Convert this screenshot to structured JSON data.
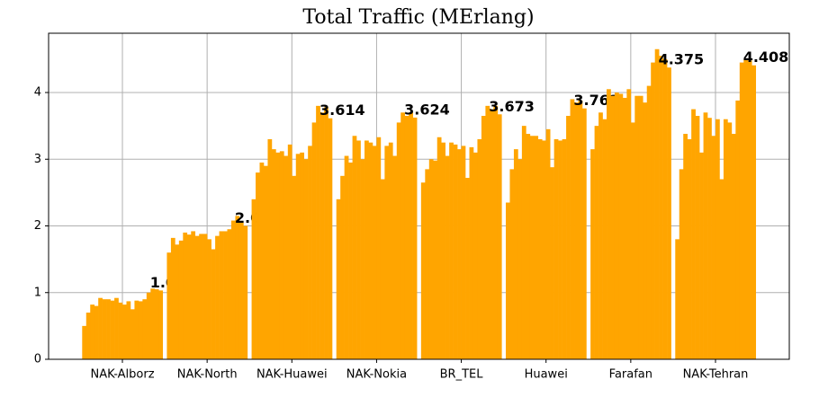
{
  "chart_data": {
    "type": "grouped-time-bar",
    "title": "Total Traffic (MErlang)",
    "categories": [
      "NAK-Alborz",
      "NAK-North",
      "NAK-Huawei",
      "NAK-Nokia",
      "BR_TEL",
      "Huawei",
      "Farafan",
      "NAK-Tehran"
    ],
    "values": [
      [
        0.5,
        0.7,
        0.82,
        0.8,
        0.92,
        0.9,
        0.9,
        0.88,
        0.92,
        0.85,
        0.82,
        0.87,
        0.75,
        0.88,
        0.87,
        0.9,
        1.0,
        1.06,
        1.05,
        1.032
      ],
      [
        1.6,
        1.82,
        1.72,
        1.78,
        1.9,
        1.87,
        1.92,
        1.85,
        1.88,
        1.88,
        1.8,
        1.65,
        1.85,
        1.92,
        1.92,
        1.95,
        2.08,
        2.15,
        2.05,
        2.0
      ],
      [
        2.4,
        2.8,
        2.95,
        2.9,
        3.3,
        3.15,
        3.1,
        3.12,
        3.05,
        3.22,
        2.75,
        3.08,
        3.1,
        3.0,
        3.2,
        3.55,
        3.8,
        3.7,
        3.78,
        3.614
      ],
      [
        2.4,
        2.75,
        3.05,
        2.95,
        3.35,
        3.28,
        3.0,
        3.28,
        3.25,
        3.2,
        3.33,
        2.7,
        3.2,
        3.25,
        3.05,
        3.55,
        3.7,
        3.65,
        3.7,
        3.624
      ],
      [
        2.65,
        2.85,
        3.0,
        2.98,
        3.33,
        3.25,
        3.05,
        3.25,
        3.22,
        3.15,
        3.2,
        2.72,
        3.18,
        3.1,
        3.3,
        3.65,
        3.8,
        3.75,
        3.8,
        3.673
      ],
      [
        2.35,
        2.85,
        3.15,
        3.0,
        3.5,
        3.38,
        3.35,
        3.35,
        3.3,
        3.28,
        3.45,
        2.88,
        3.3,
        3.28,
        3.3,
        3.65,
        3.9,
        3.85,
        3.88,
        3.762
      ],
      [
        3.15,
        3.5,
        3.7,
        3.6,
        4.05,
        3.95,
        4.0,
        3.98,
        3.92,
        4.05,
        3.55,
        3.95,
        3.95,
        3.85,
        4.1,
        4.45,
        4.65,
        4.55,
        4.5,
        4.375
      ],
      [
        1.8,
        2.85,
        3.38,
        3.3,
        3.75,
        3.65,
        3.1,
        3.7,
        3.62,
        3.35,
        3.6,
        2.7,
        3.6,
        3.55,
        3.38,
        3.88,
        4.45,
        4.5,
        4.48,
        4.408
      ]
    ],
    "value_labels": [
      "1.032",
      "2.0",
      "3.614",
      "3.624",
      "3.673",
      "3.762",
      "4.375",
      "4.408"
    ],
    "color": "#ffa500",
    "ylim": [
      0,
      4.889
    ],
    "yticks": [
      0,
      1,
      2,
      3,
      4
    ],
    "grid": true
  }
}
